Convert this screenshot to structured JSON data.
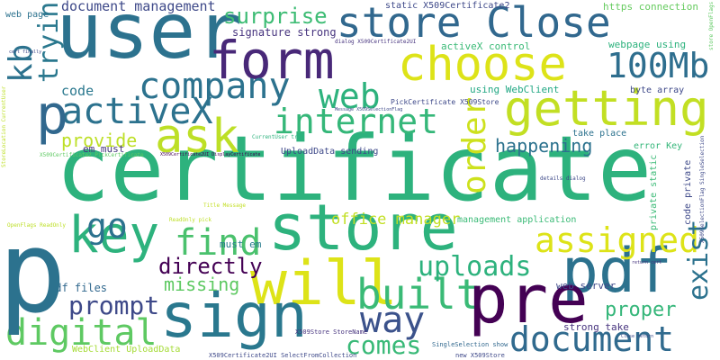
{
  "words": [
    {
      "text": "certificate",
      "color": "#2db27d"
    },
    {
      "text": "user",
      "color": "#2c728e"
    },
    {
      "text": "store",
      "color": "#2db27d"
    },
    {
      "text": "store Close",
      "color": "#31688e"
    },
    {
      "text": "form",
      "color": "#482878"
    },
    {
      "text": "choose",
      "color": "#dde318"
    },
    {
      "text": "getting",
      "color": "#c2df23"
    },
    {
      "text": "company",
      "color": "#2c728e"
    },
    {
      "text": "100Mb",
      "color": "#2e6e8e"
    },
    {
      "text": "web",
      "color": "#2db27d"
    },
    {
      "text": "activeX",
      "color": "#2c728e"
    },
    {
      "text": "ask",
      "color": "#bddf26"
    },
    {
      "text": "internet",
      "color": "#35b779"
    },
    {
      "text": "key",
      "color": "#2db27d"
    },
    {
      "text": "go",
      "color": "#2c728e"
    },
    {
      "text": "find",
      "color": "#4ac16d"
    },
    {
      "text": "will",
      "color": "#dde318"
    },
    {
      "text": "built",
      "color": "#3aba76"
    },
    {
      "text": "pdf",
      "color": "#2c728e"
    },
    {
      "text": "pre",
      "color": "#440154"
    },
    {
      "text": "sign",
      "color": "#2a788e"
    },
    {
      "text": "assigned",
      "color": "#dde318"
    },
    {
      "text": "uploads",
      "color": "#2db27d"
    },
    {
      "text": "way",
      "color": "#3b528b"
    },
    {
      "text": "document",
      "color": "#306a8e"
    },
    {
      "text": "digital",
      "color": "#5ec962"
    },
    {
      "text": "prompt",
      "color": "#3e4989"
    },
    {
      "text": "directly",
      "color": "#440154"
    },
    {
      "text": "comes",
      "color": "#38b977"
    },
    {
      "text": "trying",
      "color": "#2a788e"
    },
    {
      "text": "kb",
      "color": "#2c728e"
    },
    {
      "text": "order",
      "color": "#cde11d"
    },
    {
      "text": "exist",
      "color": "#2c728e"
    },
    {
      "text": "surprise",
      "color": "#3dbc74"
    },
    {
      "text": "proper",
      "color": "#34b679"
    },
    {
      "text": "happening",
      "color": "#2c728e"
    },
    {
      "text": "provide",
      "color": "#bddf26"
    },
    {
      "text": "missing",
      "color": "#5ec962"
    },
    {
      "text": "document management",
      "color": "#3e4989"
    },
    {
      "text": "office manager",
      "color": "#c2df23"
    },
    {
      "text": "code",
      "color": "#2a788e"
    },
    {
      "text": "pdf files",
      "color": "#31688e"
    },
    {
      "text": "em must",
      "color": "#46337e"
    },
    {
      "text": "must em",
      "color": "#287c8e"
    },
    {
      "text": "web page",
      "color": "#2c728e"
    },
    {
      "text": "signature strong",
      "color": "#46337e"
    },
    {
      "text": "static X509Certificate2",
      "color": "#3e4989"
    },
    {
      "text": "activeX control",
      "color": "#3aba76"
    },
    {
      "text": "using WebClient",
      "color": "#22a884"
    },
    {
      "text": "webpage using",
      "color": "#2db27d"
    },
    {
      "text": "https connection",
      "color": "#65cb5e"
    },
    {
      "text": "byte array",
      "color": "#3e4989"
    },
    {
      "text": "take place",
      "color": "#2c728e"
    },
    {
      "text": "error Key",
      "color": "#34b679"
    },
    {
      "text": "private static",
      "color": "#3aba76"
    },
    {
      "text": "code private",
      "color": "#3e4989"
    },
    {
      "text": "management application",
      "color": "#3aba76"
    },
    {
      "text": "web server",
      "color": "#3e4989"
    },
    {
      "text": "strong take",
      "color": "#46337e"
    },
    {
      "text": "UploadData sending",
      "color": "#3e4989"
    },
    {
      "text": "PickCertificate X509Store",
      "color": "#3e4989"
    },
    {
      "text": "WebClient UploadData",
      "color": "#a5db36"
    },
    {
      "text": "SingleSelection show",
      "color": "#31688e"
    },
    {
      "text": "X509Certificate2UI SelectFromCollection",
      "color": "#3e4989"
    },
    {
      "text": "X509Store StoreName",
      "color": "#46337e"
    },
    {
      "text": "new X509Store",
      "color": "#3e4989"
    },
    {
      "text": "dialog X509Certificate2UI",
      "color": "#46337e"
    },
    {
      "text": "Message X509SelectionFlag",
      "color": "#3e4989"
    },
    {
      "text": "CurrentUser try",
      "color": "#2db27d"
    },
    {
      "text": "X509Certificate2 PickCertificate",
      "color": "#5ec962"
    },
    {
      "text": "details dialog",
      "color": "#3e4989"
    },
    {
      "text": "ReadOnly pick",
      "color": "#bddf26"
    },
    {
      "text": "Title Message",
      "color": "#c2df23"
    },
    {
      "text": "OpenFlags ReadOnly",
      "color": "#bddf26"
    },
    {
      "text": "X509SelectionFlag SingleSelection",
      "color": "#3e4989"
    },
    {
      "text": "StoreLocation CurrentUser",
      "color": "#bddf26"
    },
    {
      "text": "Close return",
      "color": "#3e4989"
    },
    {
      "text": "store OpenFlags",
      "color": "#5ec962"
    },
    {
      "text": "return cert",
      "color": "#46337e"
    },
    {
      "text": "cert finally",
      "color": "#3e4989"
    },
    {
      "text": "X509Certificate2UI DisplayCertificate",
      "color": "#440154"
    },
    {
      "text": "p",
      "color": "#2c728e"
    },
    {
      "text": "p",
      "color": "#31688e"
    }
  ]
}
